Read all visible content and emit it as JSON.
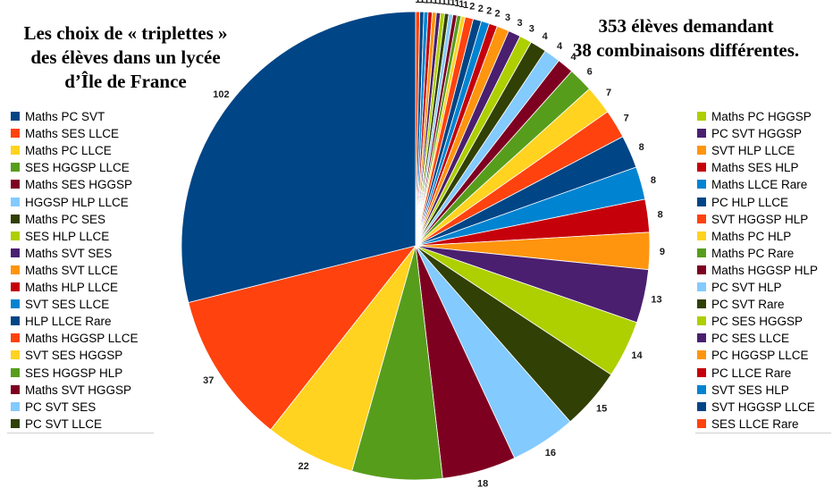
{
  "header": {
    "left_title_lines": [
      "Les choix de « triplettes »",
      "des élèves dans un lycée",
      "d’Île de France"
    ],
    "right_title_lines": [
      "353 élèves demandant",
      "38 combinaisons différentes."
    ]
  },
  "chart_data": {
    "type": "pie",
    "title": "Les choix de « triplettes » des élèves dans un lycée d’Île de France",
    "subtitle": "353 élèves demandant 38 combinaisons différentes.",
    "legend": "left and right",
    "slices": [
      {
        "label": "Maths PC SVT",
        "value": 102,
        "color": "#004586"
      },
      {
        "label": "Maths SES LLCE",
        "value": 37,
        "color": "#ff420e"
      },
      {
        "label": "Maths PC LLCE",
        "value": 22,
        "color": "#ffd320"
      },
      {
        "label": "SES HGGSP LLCE",
        "value": 22,
        "color": "#579d1c"
      },
      {
        "label": "Maths SES HGGSP",
        "value": 18,
        "color": "#7e0021"
      },
      {
        "label": "HGGSP HLP LLCE",
        "value": 16,
        "color": "#83caff"
      },
      {
        "label": "Maths PC SES",
        "value": 15,
        "color": "#314004"
      },
      {
        "label": "SES HLP LLCE",
        "value": 14,
        "color": "#aecf00"
      },
      {
        "label": "Maths SVT SES",
        "value": 13,
        "color": "#4b1f6f"
      },
      {
        "label": "Maths SVT LLCE",
        "value": 9,
        "color": "#ff950e"
      },
      {
        "label": "Maths HLP LLCE",
        "value": 8,
        "color": "#c5000b"
      },
      {
        "label": "SVT SES LLCE",
        "value": 8,
        "color": "#0084d1"
      },
      {
        "label": "HLP LLCE Rare",
        "value": 8,
        "color": "#004586"
      },
      {
        "label": "Maths HGGSP LLCE",
        "value": 7,
        "color": "#ff420e"
      },
      {
        "label": "SVT SES HGGSP",
        "value": 7,
        "color": "#ffd320"
      },
      {
        "label": "SES HGGSP HLP",
        "value": 6,
        "color": "#579d1c"
      },
      {
        "label": "Maths SVT HGGSP",
        "value": 4,
        "color": "#7e0021"
      },
      {
        "label": "PC SVT SES",
        "value": 4,
        "color": "#83caff"
      },
      {
        "label": "PC SVT LLCE",
        "value": 4,
        "color": "#314004"
      },
      {
        "label": "Maths PC HGGSP",
        "value": 3,
        "color": "#aecf00"
      },
      {
        "label": "PC SVT HGGSP",
        "value": 3,
        "color": "#4b1f6f"
      },
      {
        "label": "SVT HLP LLCE",
        "value": 3,
        "color": "#ff950e"
      },
      {
        "label": "Maths SES HLP",
        "value": 2,
        "color": "#c5000b"
      },
      {
        "label": "Maths LLCE Rare",
        "value": 2,
        "color": "#0084d1"
      },
      {
        "label": "PC HLP LLCE",
        "value": 2,
        "color": "#004586"
      },
      {
        "label": "SVT HGGSP HLP",
        "value": 2,
        "color": "#ff420e"
      },
      {
        "label": "Maths PC HLP",
        "value": 1,
        "color": "#ffd320"
      },
      {
        "label": "Maths PC Rare",
        "value": 1,
        "color": "#579d1c"
      },
      {
        "label": "Maths HGGSP HLP",
        "value": 1,
        "color": "#7e0021"
      },
      {
        "label": "PC SVT HLP",
        "value": 1,
        "color": "#83caff"
      },
      {
        "label": "PC SVT Rare",
        "value": 1,
        "color": "#314004"
      },
      {
        "label": "PC SES HGGSP",
        "value": 1,
        "color": "#aecf00"
      },
      {
        "label": "PC SES LLCE",
        "value": 1,
        "color": "#4b1f6f"
      },
      {
        "label": "PC HGGSP LLCE",
        "value": 1,
        "color": "#ff950e"
      },
      {
        "label": "PC LLCE Rare",
        "value": 1,
        "color": "#c5000b"
      },
      {
        "label": "SVT SES HLP",
        "value": 1,
        "color": "#0084d1"
      },
      {
        "label": "SVT HGGSP LLCE",
        "value": 1,
        "color": "#004586"
      },
      {
        "label": "SES LLCE Rare",
        "value": 1,
        "color": "#ff420e"
      }
    ]
  }
}
